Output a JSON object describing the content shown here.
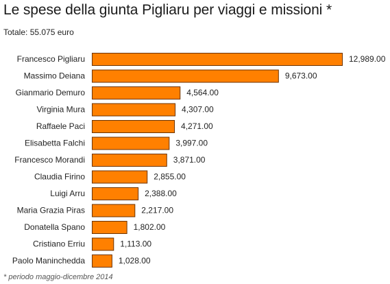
{
  "header": {
    "title": "Le spese della giunta Pigliaru per viaggi e missioni *",
    "subtitle": "Totale: 55.075 euro"
  },
  "footer": {
    "note": "* periodo maggio-dicembre 2014"
  },
  "colors": {
    "bar": "#ff8000"
  },
  "chart_data": {
    "type": "bar",
    "orientation": "horizontal",
    "title": "Le spese della giunta Pigliaru per viaggi e missioni *",
    "subtitle": "Totale: 55.075 euro",
    "xlabel": "",
    "ylabel": "",
    "grid": false,
    "legend": "none",
    "categories": [
      "Francesco Pigliaru",
      "Massimo Deiana",
      "Gianmario Demuro",
      "Virginia Mura",
      "Raffaele Paci",
      "Elisabetta Falchi",
      "Francesco Morandi",
      "Claudia Firino",
      "Luigi Arru",
      "Maria Grazia Piras",
      "Donatella Spano",
      "Cristiano Erriu",
      "Paolo Maninchedda"
    ],
    "values": [
      12989,
      9673,
      4564,
      4307,
      4271,
      3997,
      3871,
      2855,
      2388,
      2217,
      1802,
      1113,
      1028
    ],
    "value_labels": [
      "12,989.00",
      "9,673.00",
      "4,564.00",
      "4,307.00",
      "4,271.00",
      "3,997.00",
      "3,871.00",
      "2,855.00",
      "2,388.00",
      "2,217.00",
      "1,802.00",
      "1,113.00",
      "1,028.00"
    ],
    "xlim": [
      0,
      12989
    ]
  }
}
